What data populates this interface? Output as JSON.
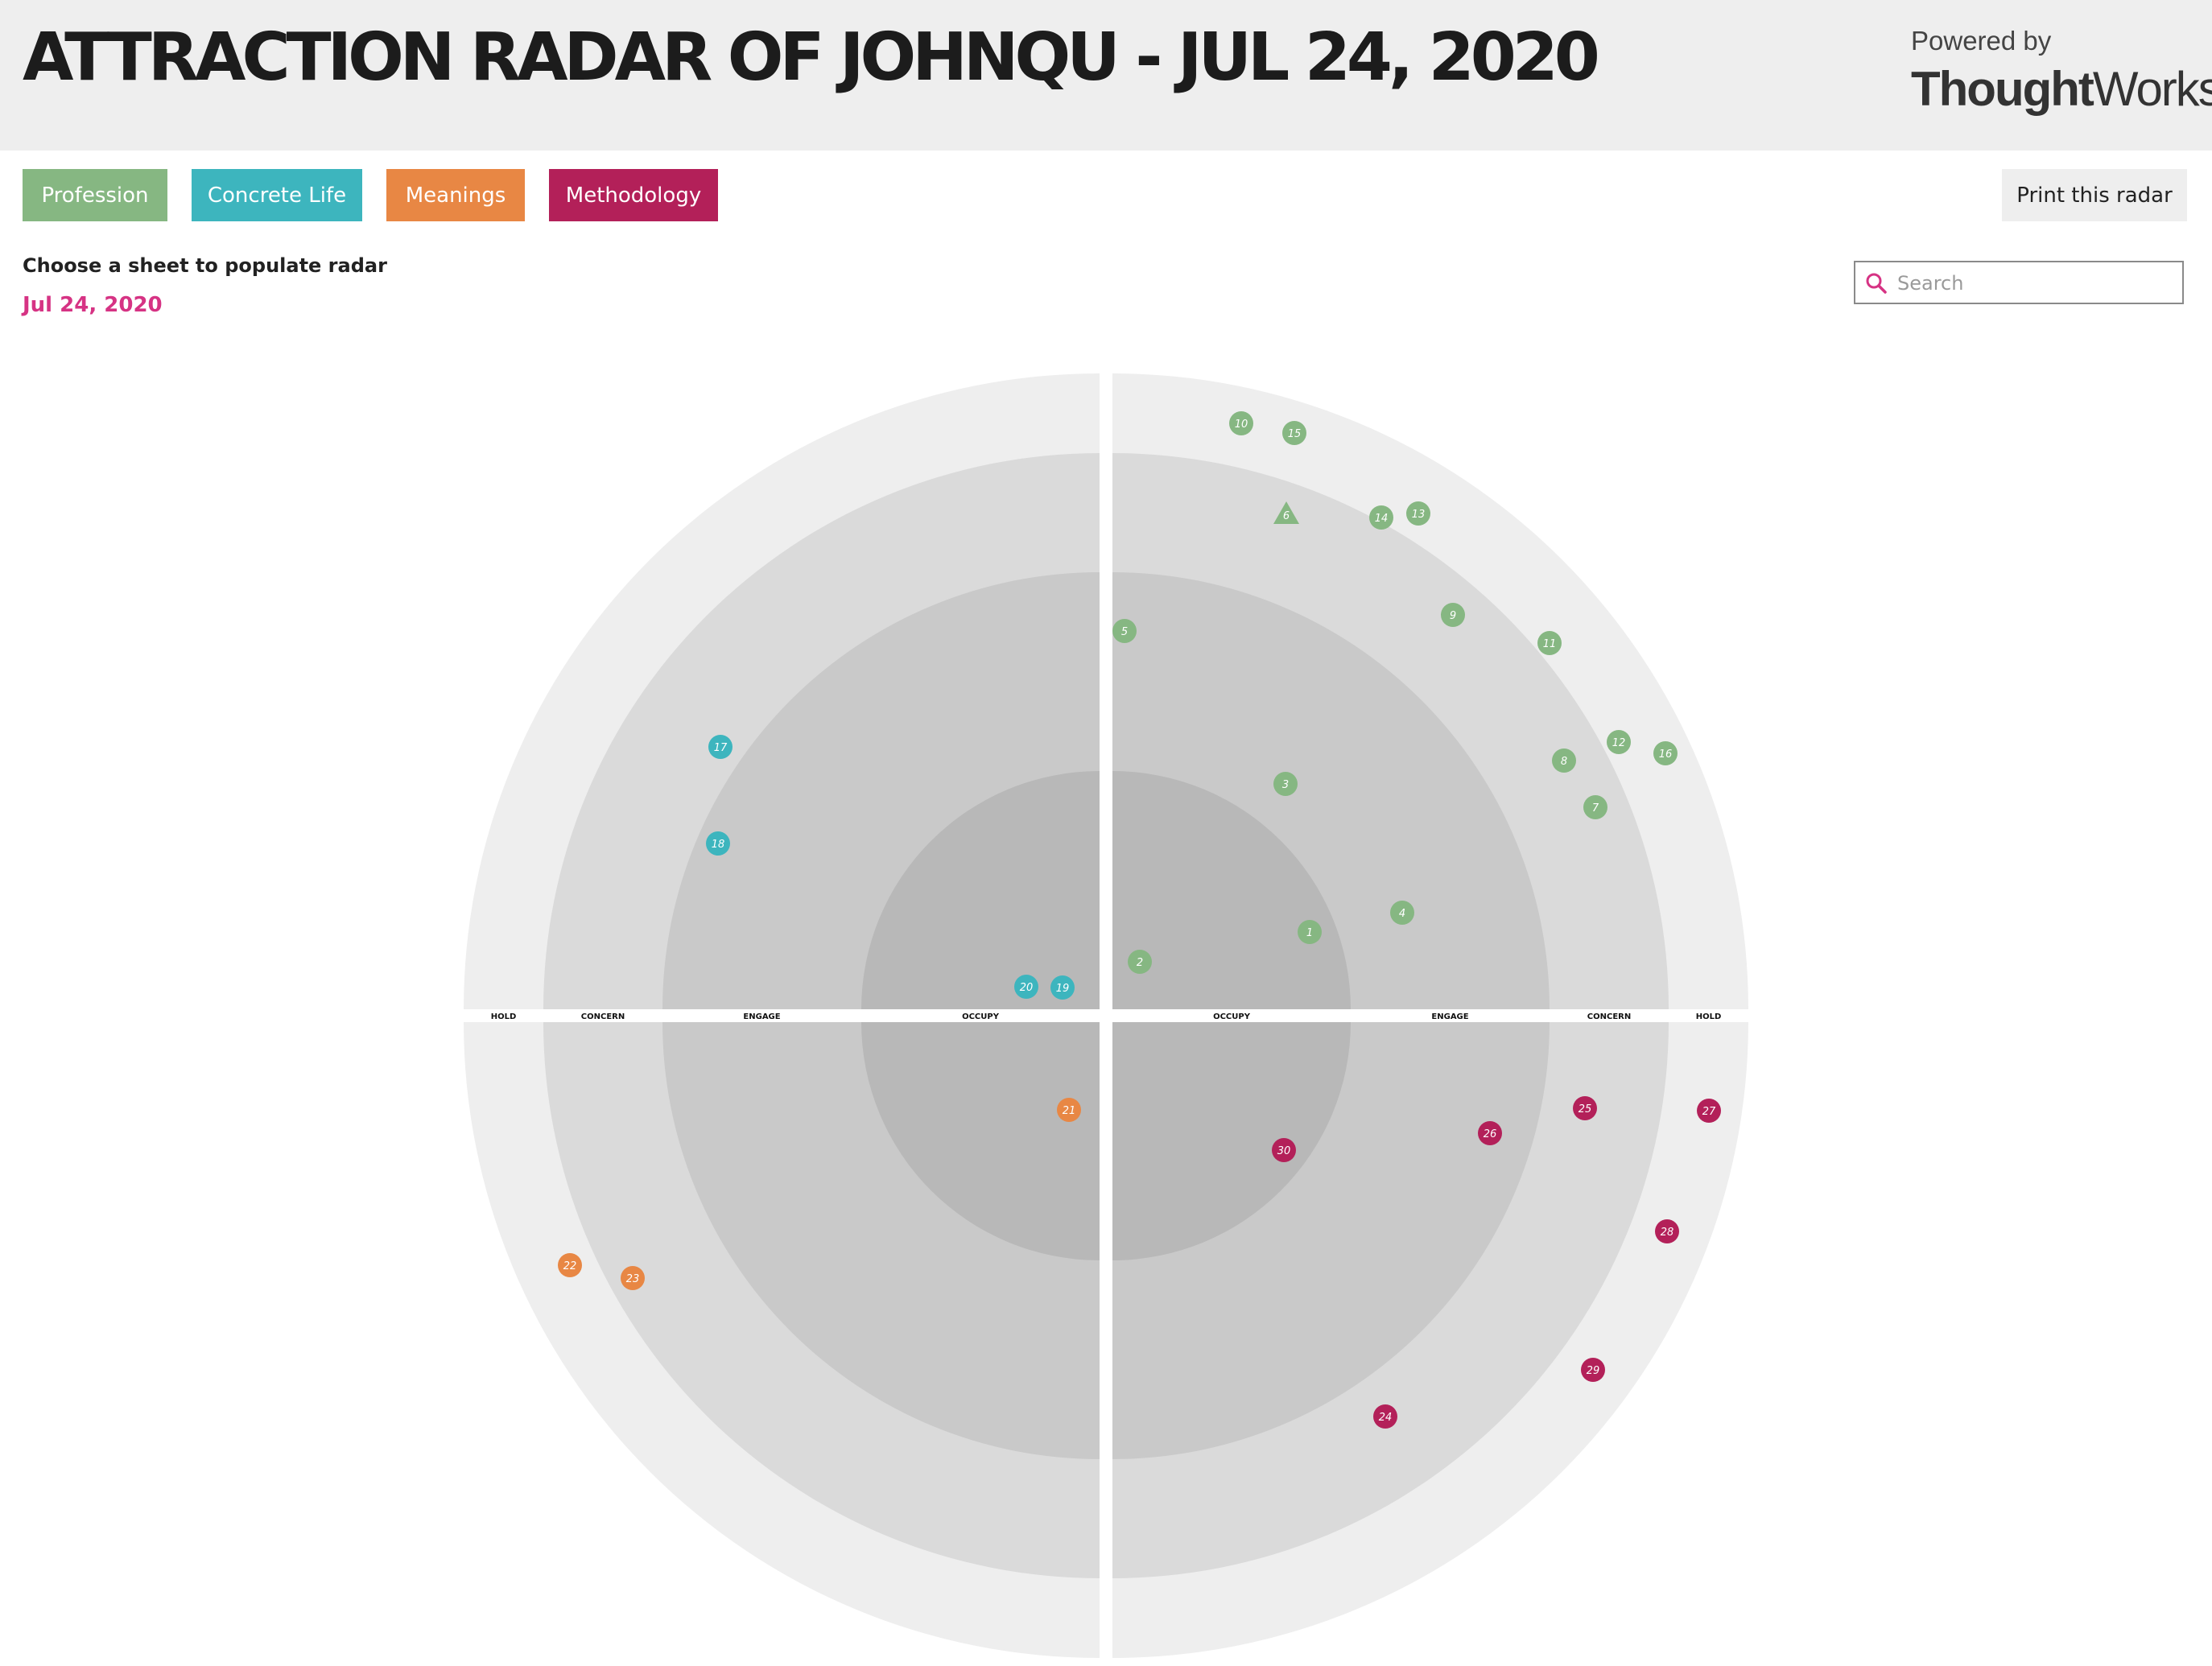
{
  "header": {
    "title": "ATTRACTION RADAR OF JOHNQU - JUL 24, 2020",
    "powered_by": "Powered by",
    "brand_bold": "Thought",
    "brand_regular": "Works",
    "brand_mark": "®"
  },
  "quadrant_buttons": [
    {
      "label": "Profession",
      "color": "#86b782"
    },
    {
      "label": "Concrete Life",
      "color": "#3db5be"
    },
    {
      "label": "Meanings",
      "color": "#e88744"
    },
    {
      "label": "Methodology",
      "color": "#b32059"
    }
  ],
  "print_label": "Print this radar",
  "choose_label": "Choose a sheet to populate radar",
  "sheet_date": "Jul 24, 2020",
  "search": {
    "placeholder": "Search",
    "value": ""
  },
  "rings": [
    "OCCUPY",
    "ENGAGE",
    "CONCERN",
    "HOLD"
  ],
  "ring_colors": [
    "#b8b8b8",
    "#c9c9c9",
    "#dadada",
    "#eeeeee"
  ],
  "quadrant_colors": {
    "profession": "#86b782",
    "concrete_life": "#3db5be",
    "meanings": "#e88744",
    "methodology": "#b32059"
  },
  "blips": [
    {
      "num": "1",
      "quadrant": "profession",
      "ring": "ENGAGE",
      "shape": "circle"
    },
    {
      "num": "2",
      "quadrant": "profession",
      "ring": "OCCUPY",
      "shape": "circle"
    },
    {
      "num": "3",
      "quadrant": "profession",
      "ring": "ENGAGE",
      "shape": "circle"
    },
    {
      "num": "4",
      "quadrant": "profession",
      "ring": "ENGAGE",
      "shape": "circle"
    },
    {
      "num": "5",
      "quadrant": "profession",
      "ring": "ENGAGE",
      "shape": "circle"
    },
    {
      "num": "6",
      "quadrant": "profession",
      "ring": "CONCERN",
      "shape": "triangle"
    },
    {
      "num": "7",
      "quadrant": "profession",
      "ring": "CONCERN",
      "shape": "circle"
    },
    {
      "num": "8",
      "quadrant": "profession",
      "ring": "CONCERN",
      "shape": "circle"
    },
    {
      "num": "9",
      "quadrant": "profession",
      "ring": "CONCERN",
      "shape": "circle"
    },
    {
      "num": "10",
      "quadrant": "profession",
      "ring": "HOLD",
      "shape": "circle"
    },
    {
      "num": "11",
      "quadrant": "profession",
      "ring": "CONCERN",
      "shape": "circle"
    },
    {
      "num": "12",
      "quadrant": "profession",
      "ring": "HOLD",
      "shape": "circle"
    },
    {
      "num": "13",
      "quadrant": "profession",
      "ring": "CONCERN",
      "shape": "circle"
    },
    {
      "num": "14",
      "quadrant": "profession",
      "ring": "CONCERN",
      "shape": "circle"
    },
    {
      "num": "15",
      "quadrant": "profession",
      "ring": "HOLD",
      "shape": "circle"
    },
    {
      "num": "16",
      "quadrant": "profession",
      "ring": "HOLD",
      "shape": "circle"
    },
    {
      "num": "17",
      "quadrant": "concrete_life",
      "ring": "CONCERN",
      "shape": "circle"
    },
    {
      "num": "18",
      "quadrant": "concrete_life",
      "ring": "CONCERN",
      "shape": "circle"
    },
    {
      "num": "19",
      "quadrant": "concrete_life",
      "ring": "OCCUPY",
      "shape": "circle"
    },
    {
      "num": "20",
      "quadrant": "concrete_life",
      "ring": "OCCUPY",
      "shape": "circle"
    },
    {
      "num": "21",
      "quadrant": "meanings",
      "ring": "OCCUPY",
      "shape": "circle"
    },
    {
      "num": "22",
      "quadrant": "meanings",
      "ring": "HOLD",
      "shape": "circle"
    },
    {
      "num": "23",
      "quadrant": "meanings",
      "ring": "CONCERN",
      "shape": "circle"
    },
    {
      "num": "24",
      "quadrant": "methodology",
      "ring": "CONCERN",
      "shape": "circle"
    },
    {
      "num": "25",
      "quadrant": "methodology",
      "ring": "CONCERN",
      "shape": "circle"
    },
    {
      "num": "26",
      "quadrant": "methodology",
      "ring": "ENGAGE",
      "shape": "circle"
    },
    {
      "num": "27",
      "quadrant": "methodology",
      "ring": "HOLD",
      "shape": "circle"
    },
    {
      "num": "28",
      "quadrant": "methodology",
      "ring": "HOLD",
      "shape": "circle"
    },
    {
      "num": "29",
      "quadrant": "methodology",
      "ring": "CONCERN",
      "shape": "circle"
    },
    {
      "num": "30",
      "quadrant": "methodology",
      "ring": "OCCUPY",
      "shape": "circle"
    }
  ]
}
